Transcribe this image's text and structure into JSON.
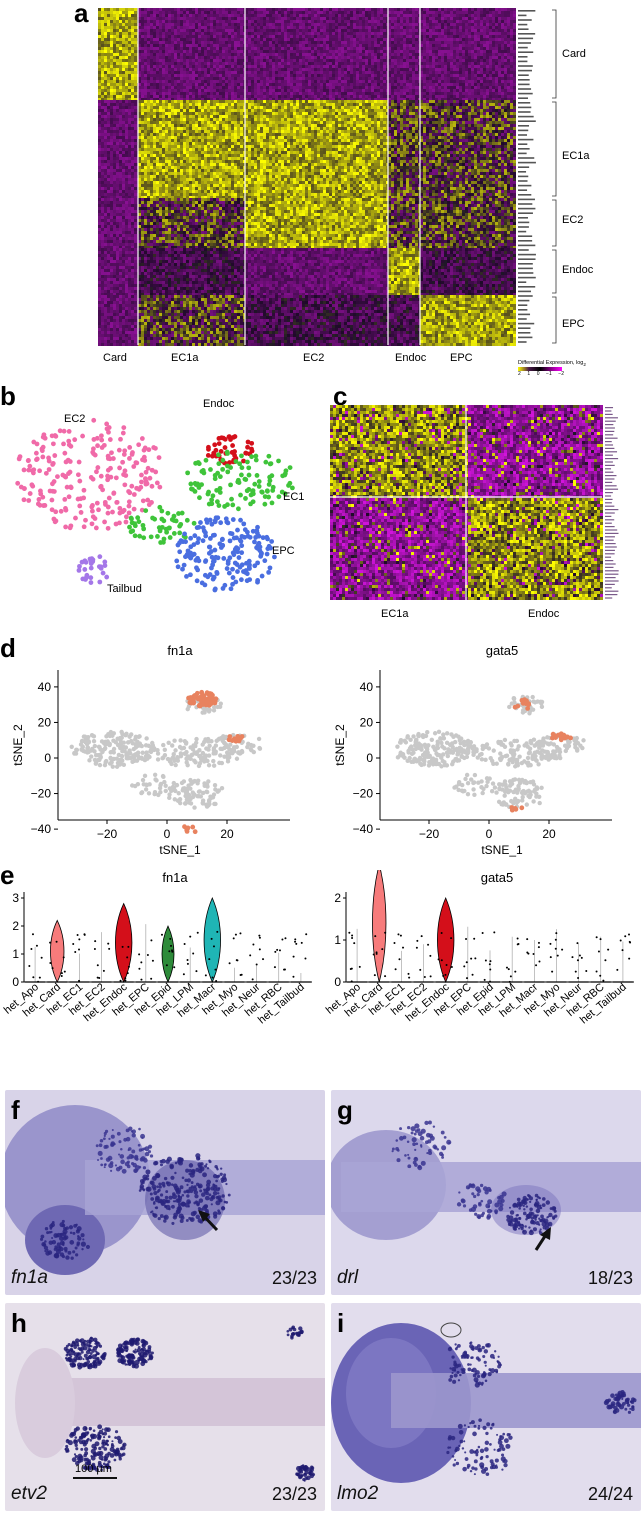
{
  "panels": {
    "a": {
      "label": "a",
      "groups": [
        "Card",
        "EC1a",
        "EC2",
        "Endoc",
        "EPC"
      ],
      "group_labels": [
        "Card",
        "EC1a",
        "EC2",
        "Endoc",
        "EPC"
      ],
      "row_groups": [
        "Card",
        "EC1a",
        "EC2",
        "Endoc",
        "EPC"
      ],
      "legend_title": "Differential Expression, log",
      "legend_sub": "2",
      "legend_ticks": [
        "2",
        "1",
        "0",
        "−1",
        "−2"
      ]
    },
    "b": {
      "label": "b",
      "clusters": [
        "EC2",
        "Endoc",
        "EC1",
        "EPC",
        "Tailbud"
      ],
      "colors": {
        "EC2": "#f06aa8",
        "Endoc": "#d40f1a",
        "EC1": "#3fc43a",
        "EPC": "#4a6ee0",
        "Tailbud": "#a477e8"
      }
    },
    "c": {
      "label": "c",
      "groups": [
        "EC1a",
        "Endoc"
      ]
    },
    "d": {
      "label": "d",
      "plots": [
        {
          "title": "fn1a",
          "xlabel": "tSNE_1",
          "ylabel": "tSNE_2"
        },
        {
          "title": "gata5",
          "xlabel": "tSNE_1",
          "ylabel": "tSNE_2"
        }
      ],
      "xticks": [
        "−20",
        "0",
        "20"
      ],
      "yticks": [
        "40",
        "20",
        "0",
        "−20",
        "−40"
      ],
      "highlight_color": "#e8825f",
      "base_color": "#c8c8c8"
    },
    "e": {
      "label": "e",
      "plots": [
        {
          "title": "fn1a",
          "yticks": [
            "3",
            "2",
            "1",
            "0"
          ]
        },
        {
          "title": "gata5",
          "yticks": [
            "2",
            "1",
            "0"
          ]
        }
      ],
      "categories": [
        "het_Apo",
        "het_Card",
        "het_EC1",
        "het_EC2",
        "het_Endoc",
        "het_EPC",
        "het_Epid",
        "het_LPM",
        "het_Macr",
        "het_Myo",
        "het_Neur",
        "het_RBC",
        "het_Tailbud"
      ]
    },
    "f": {
      "label": "f",
      "gene": "fn1a",
      "count": "23/23"
    },
    "g": {
      "label": "g",
      "gene": "drl",
      "count": "18/23"
    },
    "h": {
      "label": "h",
      "gene": "etv2",
      "count": "23/23",
      "scale": "100 µm"
    },
    "i": {
      "label": "i",
      "gene": "lmo2",
      "count": "24/24"
    }
  }
}
